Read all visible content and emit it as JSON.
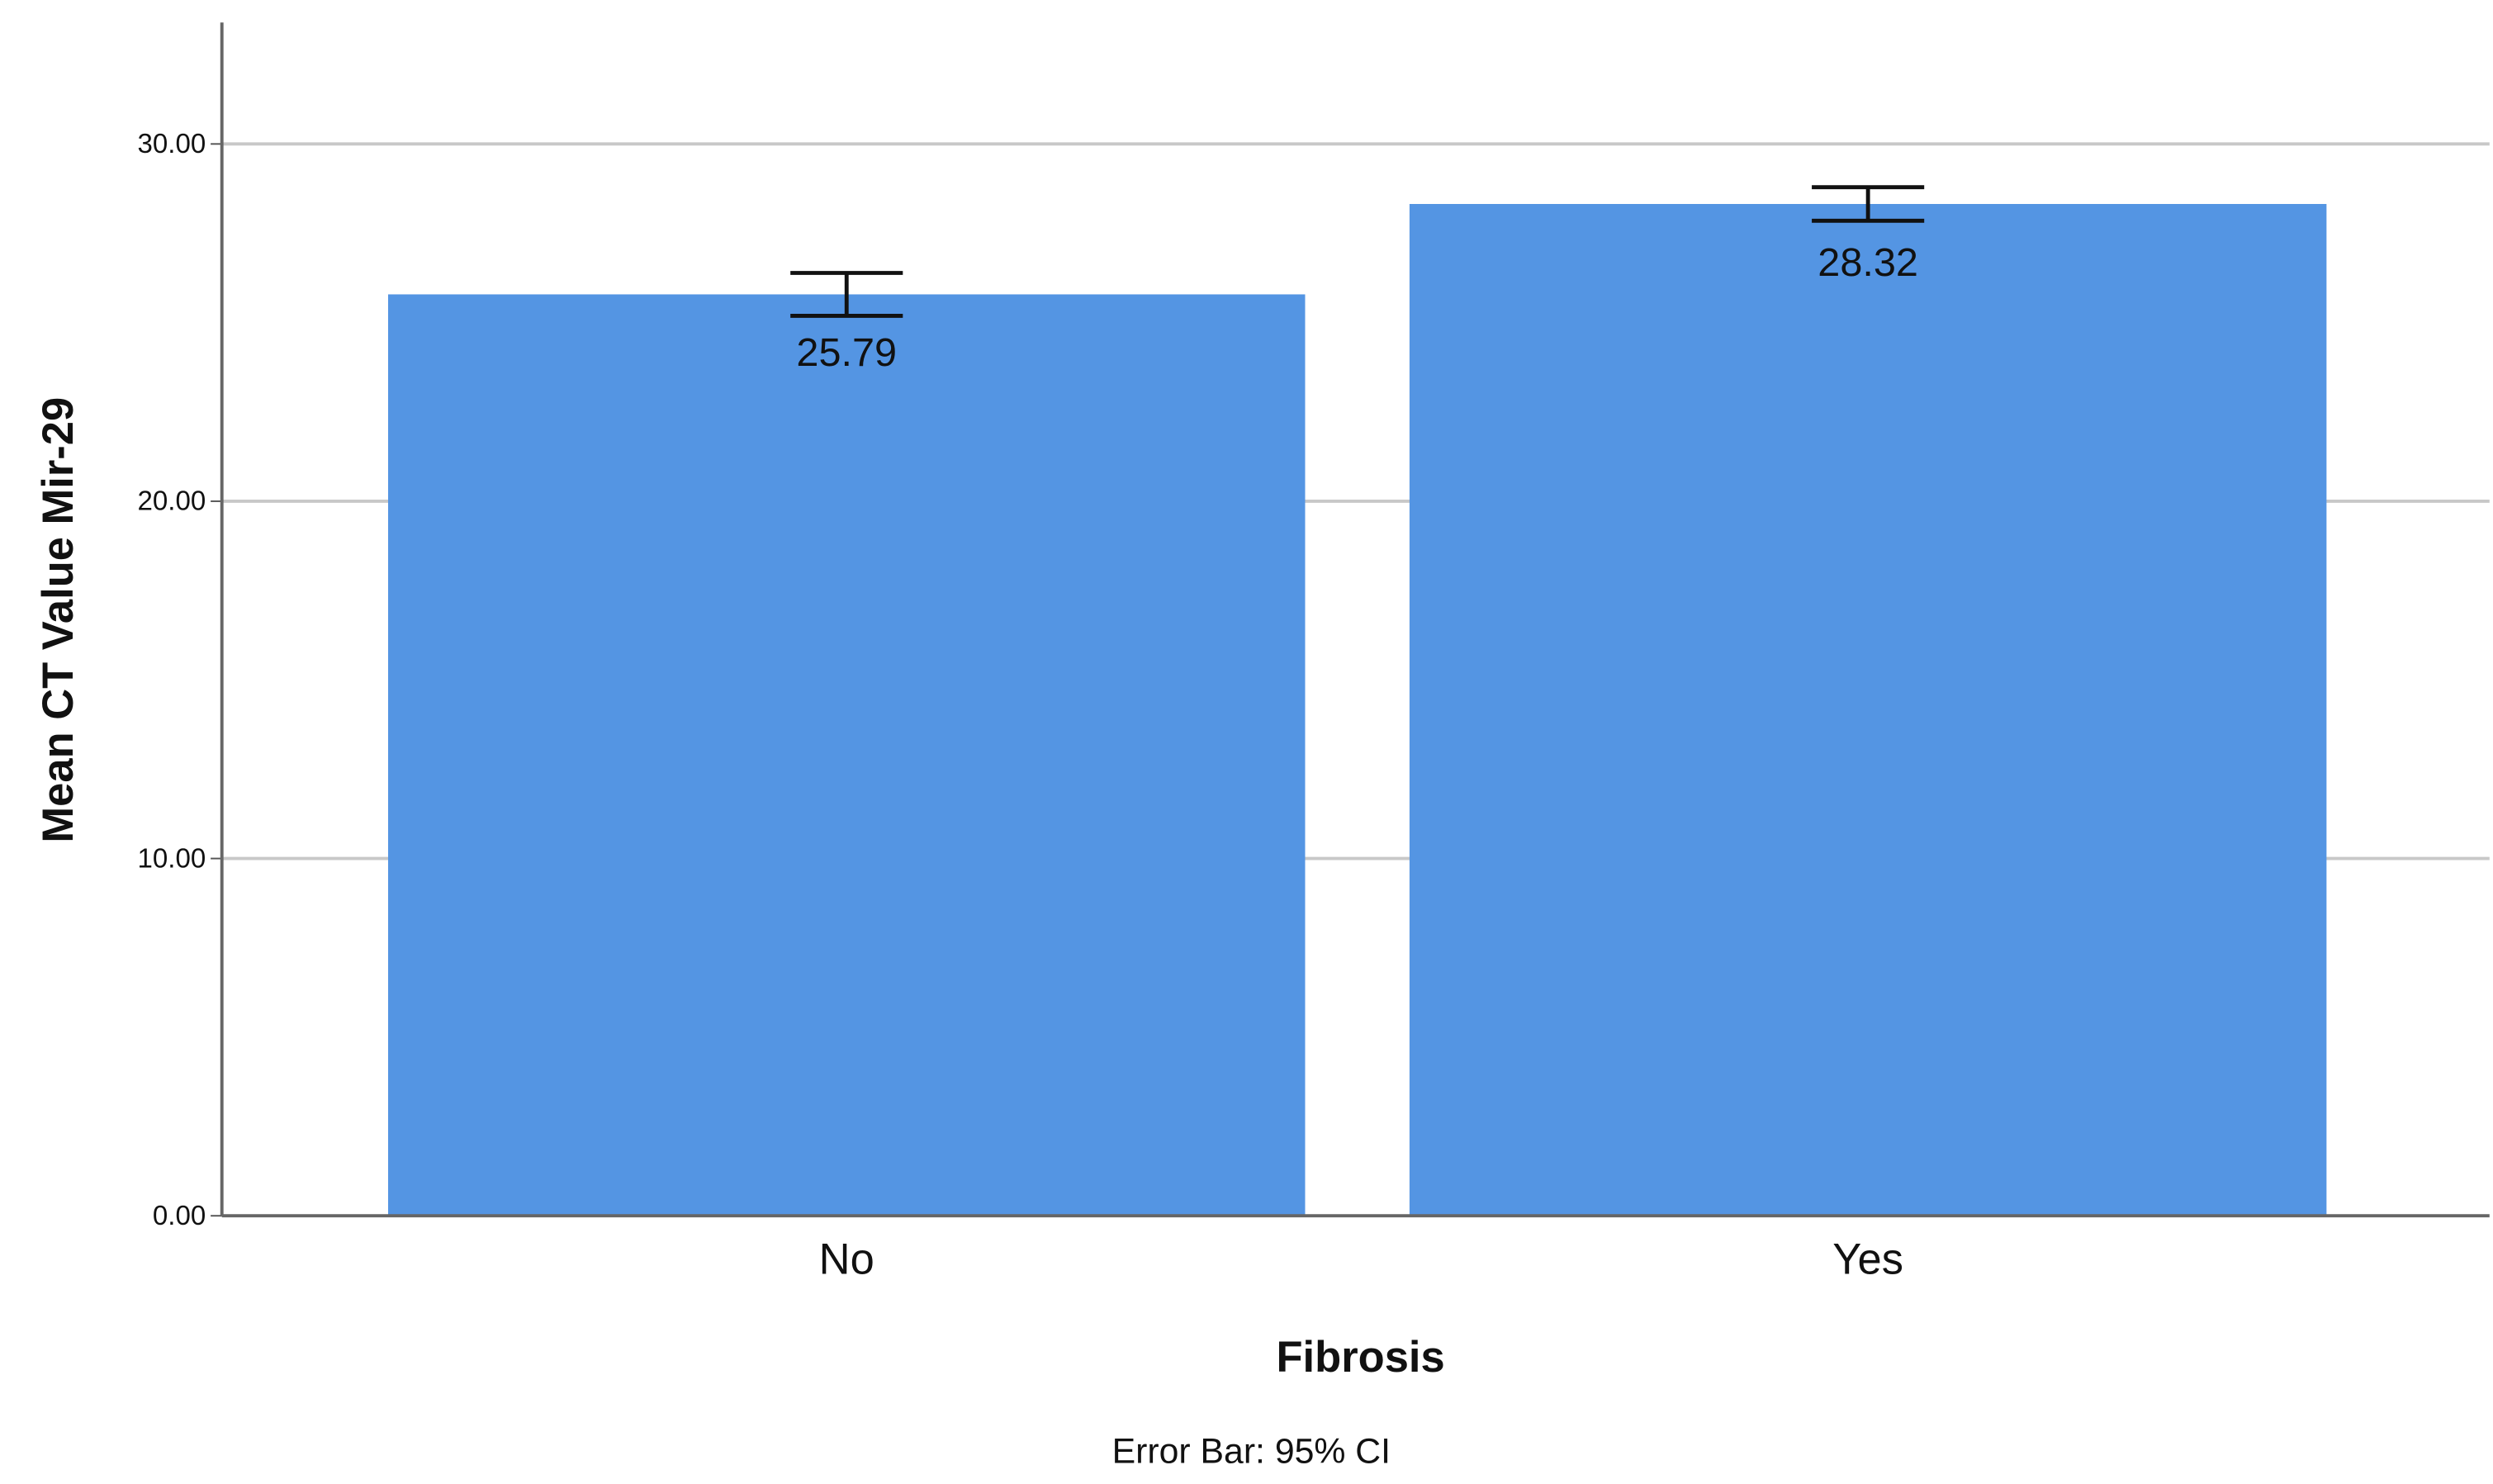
{
  "chart_data": {
    "type": "bar",
    "x_label": "Fibrosis",
    "y_label": "Mean CT Value Mir-29",
    "note": "Error Bar: 95% CI",
    "categories": [
      "No",
      "Yes"
    ],
    "values": [
      25.79,
      28.32
    ],
    "errors": [
      0.6,
      0.47
    ],
    "color": "#5495e3",
    "ylim": [
      0,
      33.4
    ],
    "yticks": [
      {
        "value": 0,
        "label": "0.00"
      },
      {
        "value": 10,
        "label": "10.00"
      },
      {
        "value": 20,
        "label": "20.00"
      },
      {
        "value": 30,
        "label": "30.00"
      }
    ],
    "grid": true
  }
}
